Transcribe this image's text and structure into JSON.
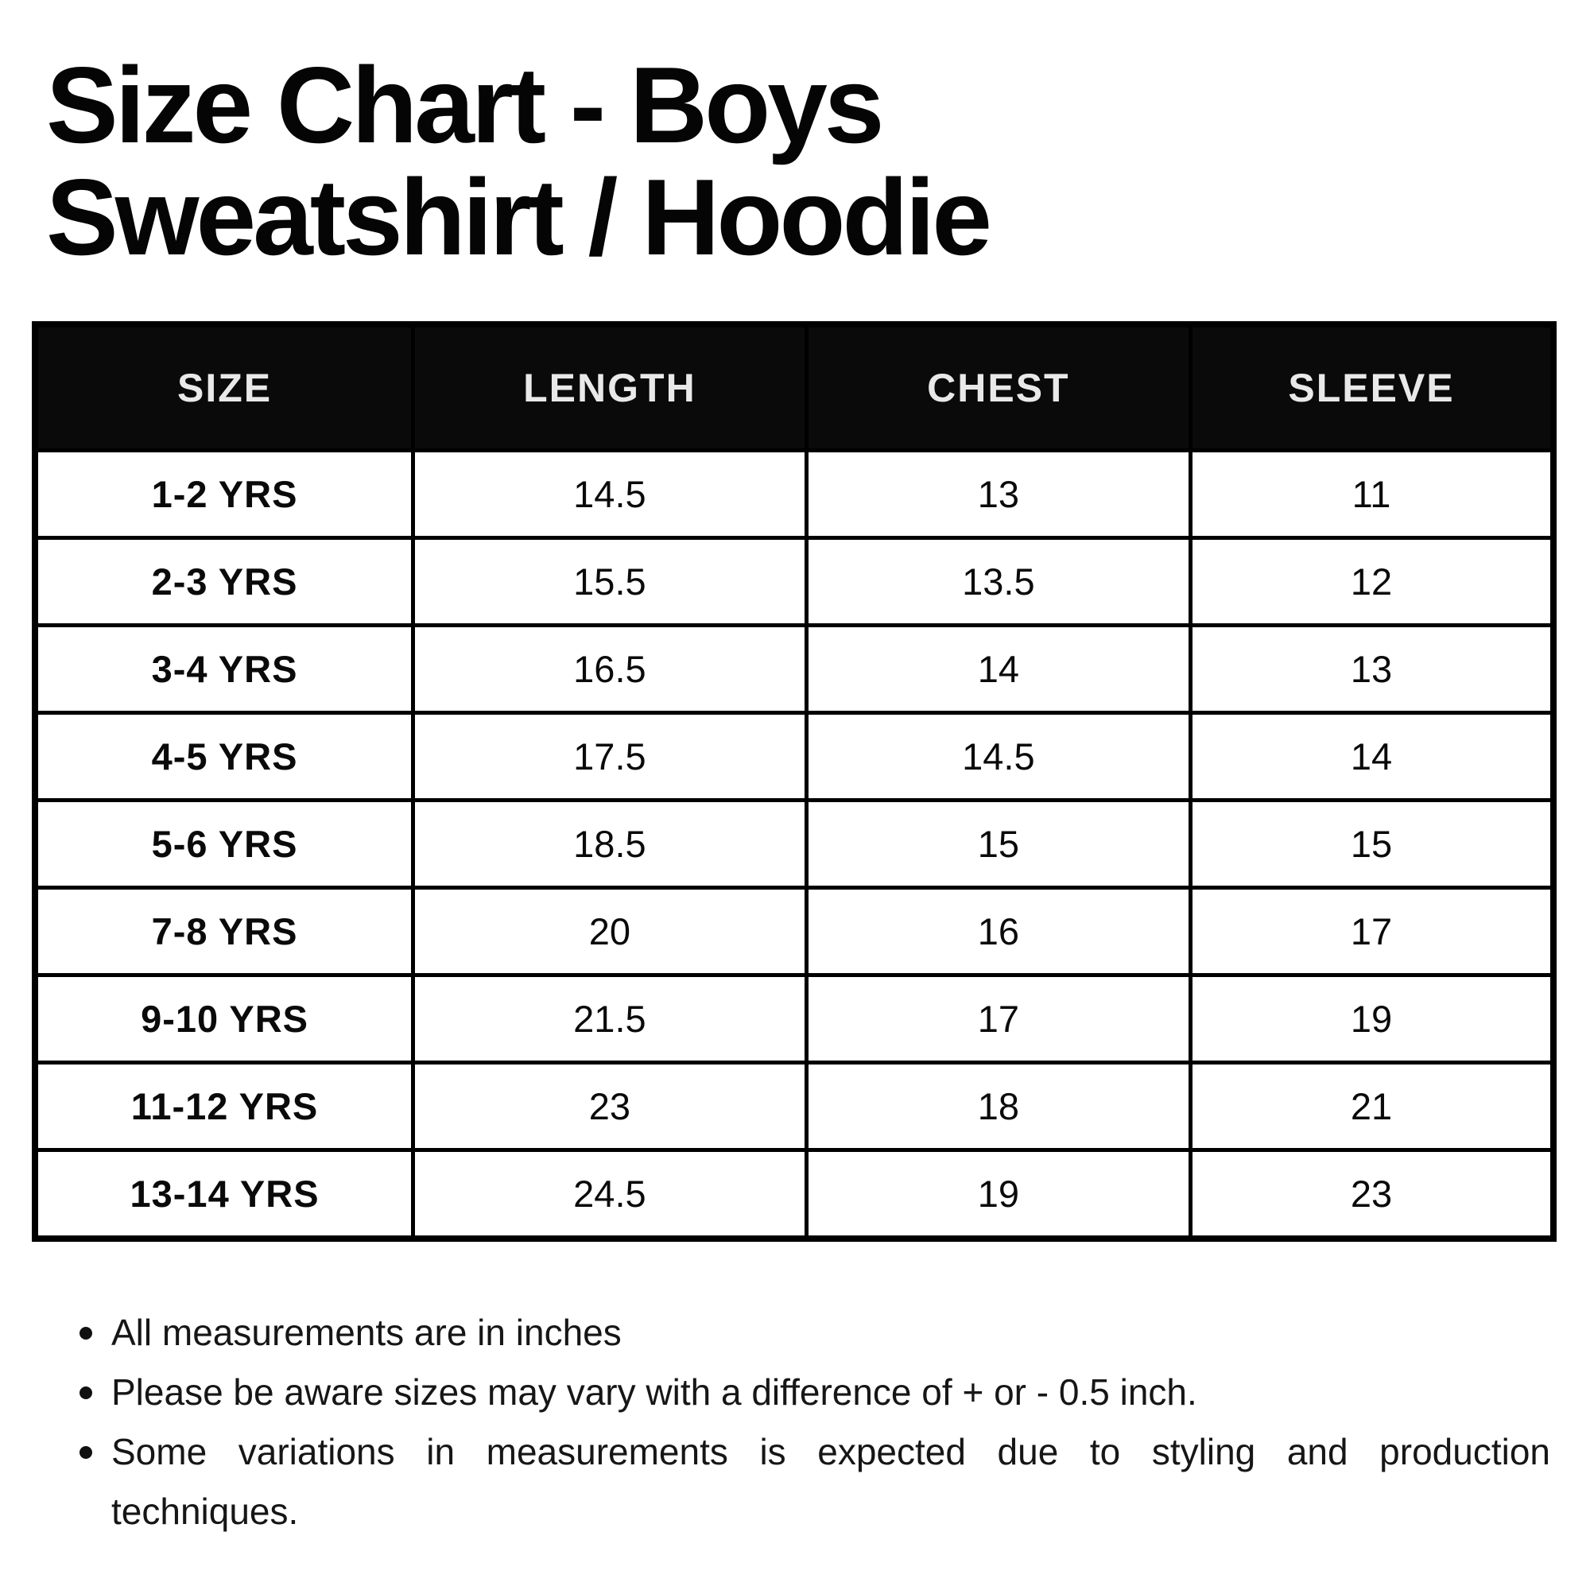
{
  "page": {
    "background_color": "#ffffff",
    "text_color": "#0a0a0a"
  },
  "title": {
    "line1": "Size Chart - Boys",
    "line2": "Sweatshirt / Hoodie"
  },
  "table": {
    "header_bg": "#0a0a0a",
    "header_text_color": "#e9e9e9",
    "border_color": "#000000",
    "headers": [
      "SIZE",
      "LENGTH",
      "CHEST",
      "SLEEVE"
    ],
    "rows": [
      {
        "size": "1-2 YRS",
        "length": "14.5",
        "chest": "13",
        "sleeve": "11"
      },
      {
        "size": "2-3 YRS",
        "length": "15.5",
        "chest": "13.5",
        "sleeve": "12"
      },
      {
        "size": "3-4 YRS",
        "length": "16.5",
        "chest": "14",
        "sleeve": "13"
      },
      {
        "size": "4-5 YRS",
        "length": "17.5",
        "chest": "14.5",
        "sleeve": "14"
      },
      {
        "size": "5-6 YRS",
        "length": "18.5",
        "chest": "15",
        "sleeve": "15"
      },
      {
        "size": "7-8 YRS",
        "length": "20",
        "chest": "16",
        "sleeve": "17"
      },
      {
        "size": "9-10 YRS",
        "length": "21.5",
        "chest": "17",
        "sleeve": "19"
      },
      {
        "size": "11-12 YRS",
        "length": "23",
        "chest": "18",
        "sleeve": "21"
      },
      {
        "size": "13-14 YRS",
        "length": "24.5",
        "chest": "19",
        "sleeve": "23"
      }
    ]
  },
  "notes": {
    "items": [
      {
        "lines": [
          "All measurements are in inches"
        ]
      },
      {
        "lines": [
          "Please be aware sizes may vary with a difference of + or - 0.5 inch."
        ]
      },
      {
        "lines": [
          "Some variations in measurements is expected due to styling and production",
          "techniques."
        ]
      }
    ]
  }
}
